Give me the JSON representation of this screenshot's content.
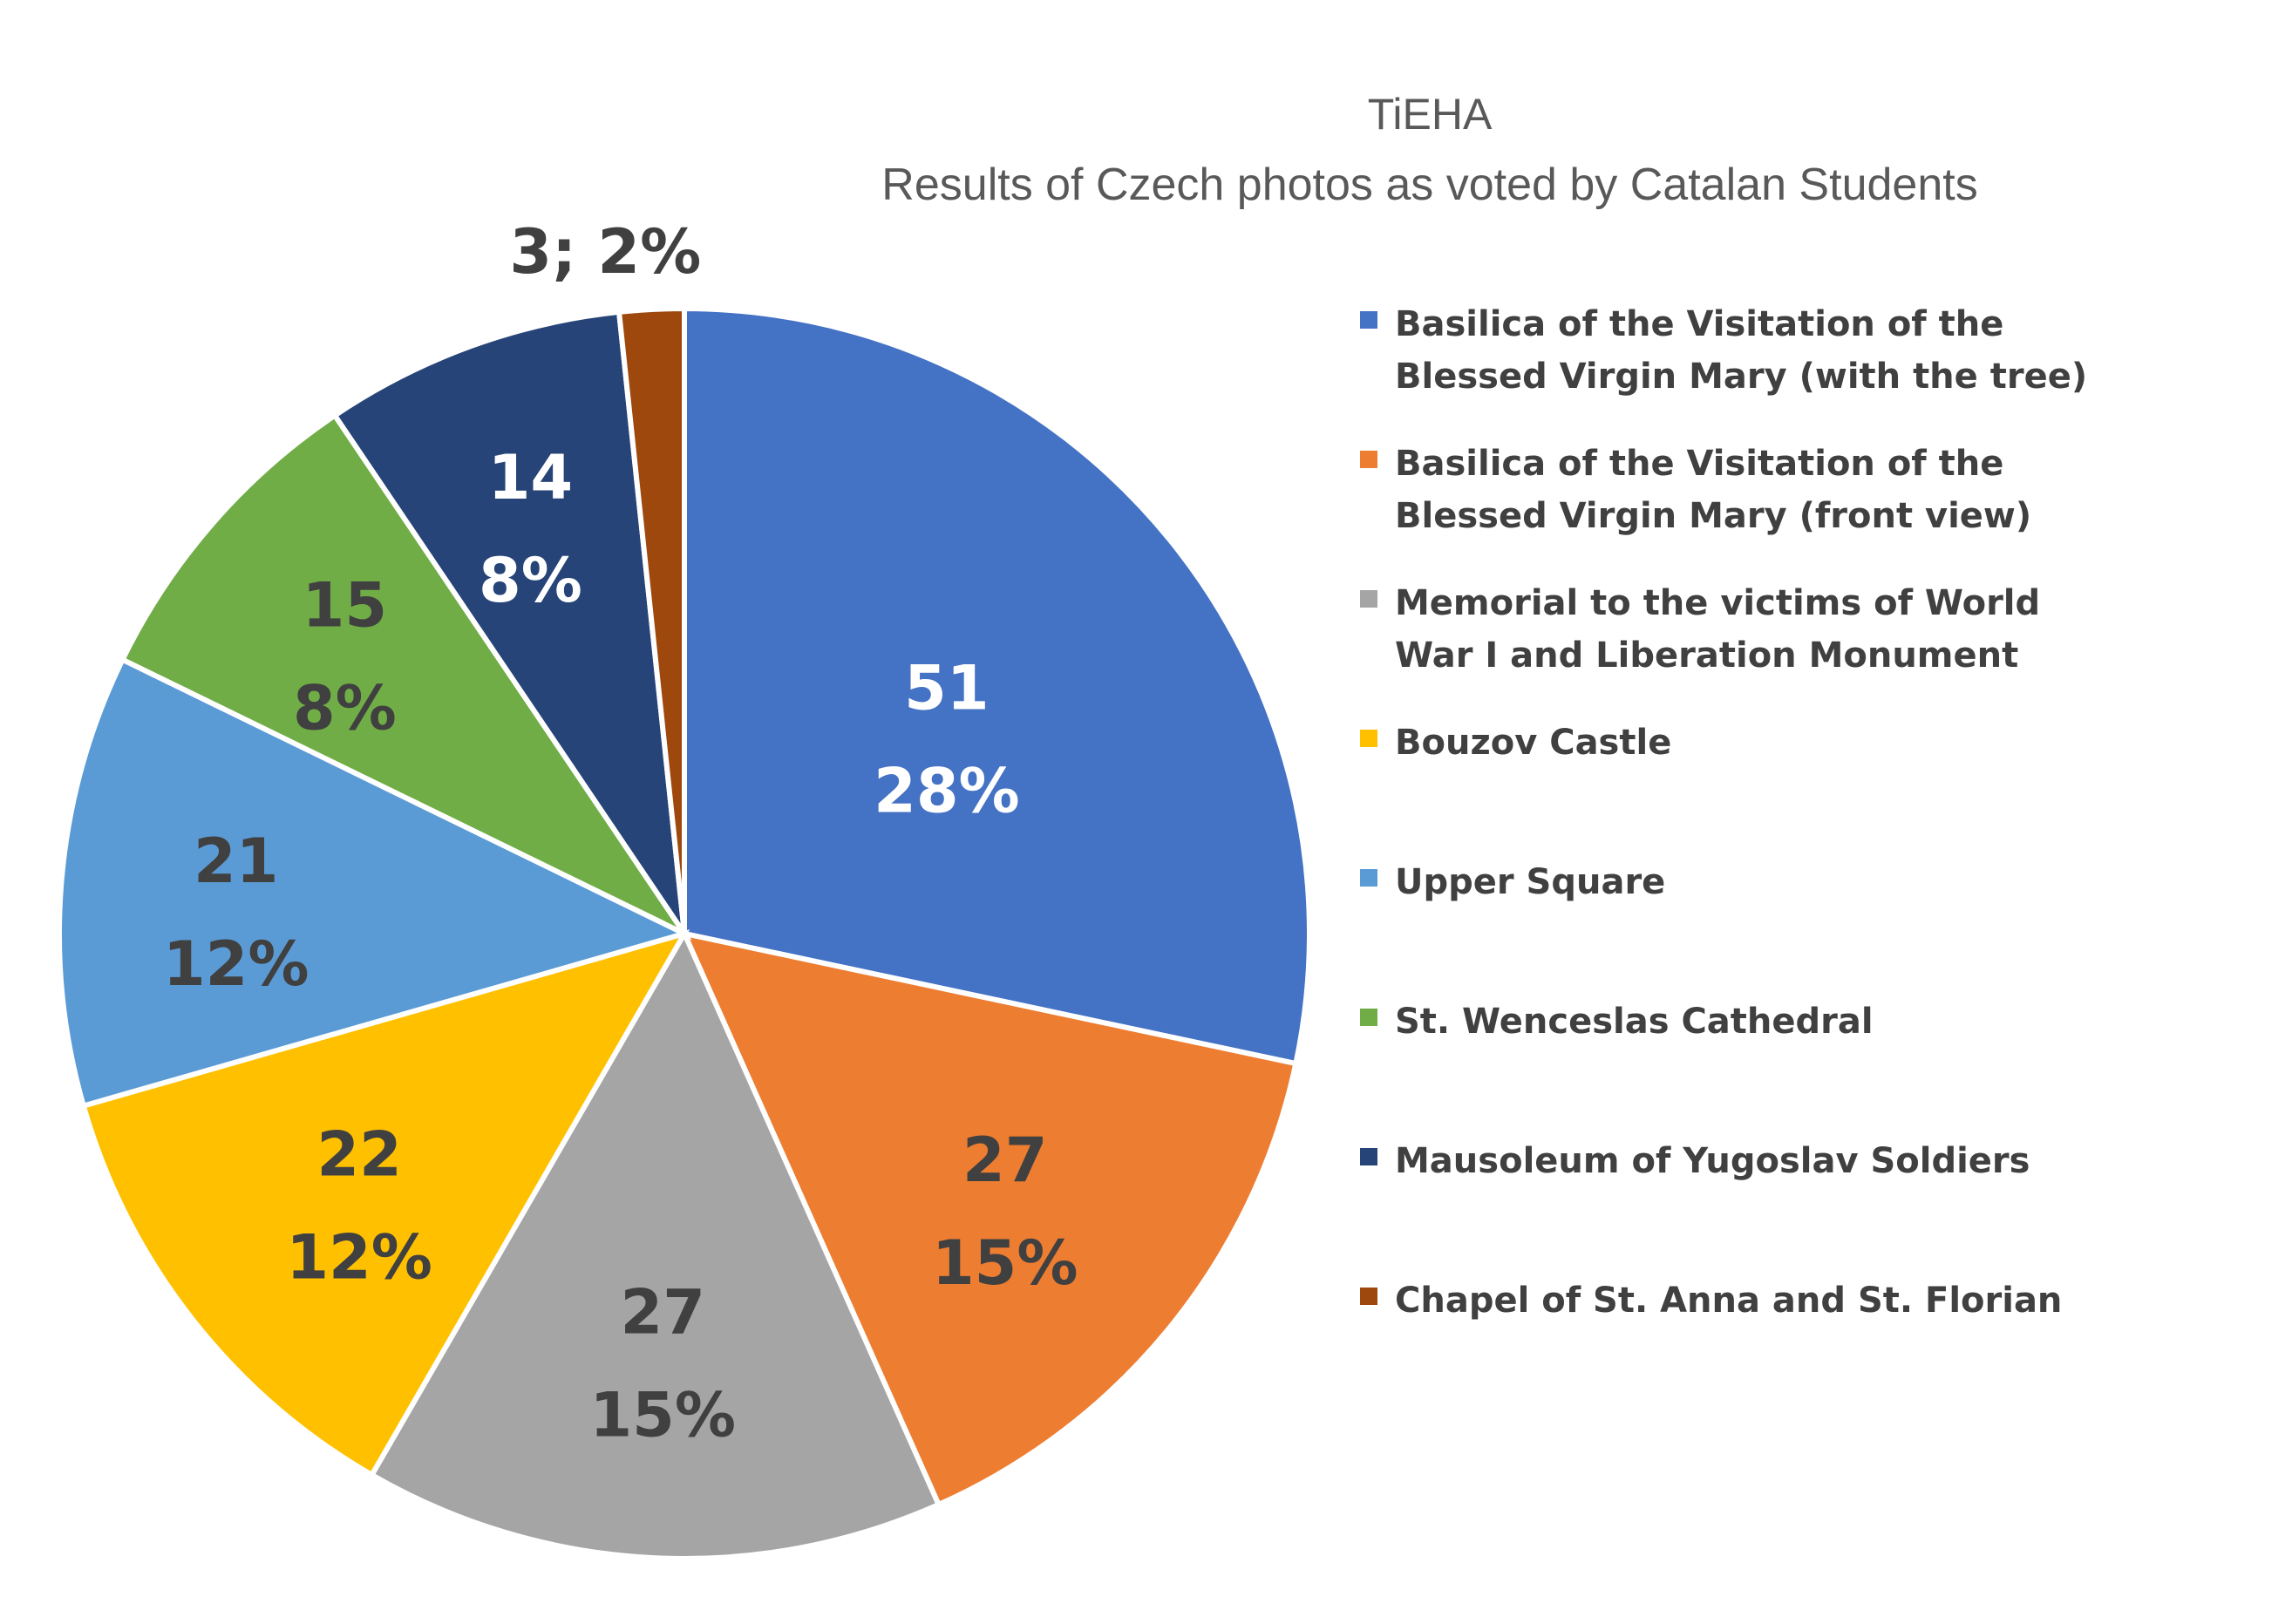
{
  "chart_data": {
    "type": "pie",
    "title": "TiEHA",
    "subtitle": "Results of Czech photos as voted by Catalan Students",
    "legend_position": "right",
    "slices": [
      {
        "name": "Basilica of the Visitation of the Blessed Virgin Mary (with the tree)",
        "legend_lines": [
          "Basilica of the Visitation of the",
          "Blessed Virgin Mary (with the tree)"
        ],
        "value": 51,
        "percent": "28%",
        "color": "#4472C4",
        "label_color": "#ffffff"
      },
      {
        "name": "Basilica of the Visitation of the Blessed Virgin Mary (front view)",
        "legend_lines": [
          "Basilica of the Visitation of the",
          "Blessed Virgin Mary (front view)"
        ],
        "value": 27,
        "percent": "15%",
        "color": "#ED7D31",
        "label_color": "#404040"
      },
      {
        "name": "Memorial to the victims of World War I and Liberation Monument",
        "legend_lines": [
          "Memorial to the victims of World",
          "War I and Liberation Monument"
        ],
        "value": 27,
        "percent": "15%",
        "color": "#A5A5A5",
        "label_color": "#404040"
      },
      {
        "name": "Bouzov Castle",
        "legend_lines": [
          "Bouzov Castle"
        ],
        "value": 22,
        "percent": "12%",
        "color": "#FFC000",
        "label_color": "#404040"
      },
      {
        "name": "Upper Square",
        "legend_lines": [
          "Upper Square"
        ],
        "value": 21,
        "percent": "12%",
        "color": "#5B9BD5",
        "label_color": "#404040"
      },
      {
        "name": "St. Wenceslas Cathedral",
        "legend_lines": [
          "St. Wenceslas Cathedral"
        ],
        "value": 15,
        "percent": "8%",
        "color": "#70AD47",
        "label_color": "#404040"
      },
      {
        "name": "Mausoleum of Yugoslav Soldiers",
        "legend_lines": [
          "Mausoleum of Yugoslav Soldiers"
        ],
        "value": 14,
        "percent": "8%",
        "color": "#264478",
        "label_color": "#ffffff"
      },
      {
        "name": "Chapel of St. Anna and St. Florian",
        "legend_lines": [
          "Chapel of St. Anna and St. Florian"
        ],
        "value": 3,
        "percent": "2%",
        "color": "#9E480E",
        "label_color": "#404040",
        "label_text": "3; 2%"
      }
    ]
  }
}
